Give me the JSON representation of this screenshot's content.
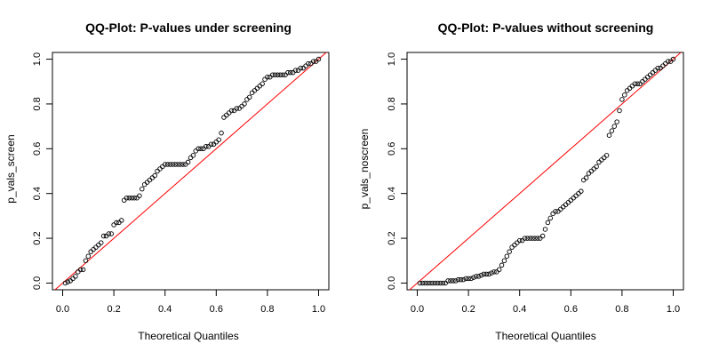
{
  "chart_data": [
    {
      "type": "scatter",
      "title": "QQ-Plot: P-values under screening",
      "xlabel": "Theoretical Quantiles",
      "ylabel": "p_vals_screen",
      "xlim": [
        -0.04,
        1.04
      ],
      "ylim": [
        -0.03,
        1.03
      ],
      "xticks": [
        "0.0",
        "0.2",
        "0.4",
        "0.6",
        "0.8",
        "1.0"
      ],
      "yticks": [
        "0.0",
        "0.2",
        "0.4",
        "0.6",
        "0.8",
        "1.0"
      ],
      "grid": false,
      "legend": "none",
      "reference_line": {
        "from": [
          -0.04,
          -0.04
        ],
        "to": [
          1.04,
          1.04
        ],
        "color": "#ff0000"
      },
      "point_color": "#000000",
      "x": [
        0.01,
        0.02,
        0.03,
        0.04,
        0.05,
        0.06,
        0.07,
        0.08,
        0.09,
        0.1,
        0.11,
        0.12,
        0.13,
        0.14,
        0.15,
        0.16,
        0.17,
        0.18,
        0.19,
        0.2,
        0.21,
        0.22,
        0.23,
        0.24,
        0.25,
        0.26,
        0.27,
        0.28,
        0.29,
        0.3,
        0.31,
        0.32,
        0.33,
        0.34,
        0.35,
        0.36,
        0.37,
        0.38,
        0.39,
        0.4,
        0.41,
        0.42,
        0.43,
        0.44,
        0.45,
        0.46,
        0.47,
        0.48,
        0.49,
        0.5,
        0.51,
        0.52,
        0.53,
        0.54,
        0.55,
        0.56,
        0.57,
        0.58,
        0.59,
        0.6,
        0.61,
        0.62,
        0.63,
        0.64,
        0.65,
        0.66,
        0.67,
        0.68,
        0.69,
        0.7,
        0.71,
        0.72,
        0.73,
        0.74,
        0.75,
        0.76,
        0.77,
        0.78,
        0.79,
        0.8,
        0.81,
        0.82,
        0.83,
        0.84,
        0.85,
        0.86,
        0.87,
        0.88,
        0.89,
        0.9,
        0.91,
        0.92,
        0.93,
        0.94,
        0.95,
        0.96,
        0.97,
        0.98,
        0.99,
        1.0
      ],
      "y": [
        0.0,
        0.005,
        0.01,
        0.02,
        0.03,
        0.05,
        0.06,
        0.06,
        0.1,
        0.12,
        0.14,
        0.15,
        0.16,
        0.17,
        0.18,
        0.21,
        0.21,
        0.22,
        0.22,
        0.26,
        0.27,
        0.27,
        0.28,
        0.37,
        0.38,
        0.38,
        0.38,
        0.38,
        0.38,
        0.39,
        0.42,
        0.44,
        0.45,
        0.46,
        0.47,
        0.48,
        0.5,
        0.51,
        0.52,
        0.53,
        0.53,
        0.53,
        0.53,
        0.53,
        0.53,
        0.53,
        0.53,
        0.53,
        0.54,
        0.56,
        0.57,
        0.59,
        0.6,
        0.6,
        0.6,
        0.61,
        0.61,
        0.62,
        0.62,
        0.63,
        0.64,
        0.67,
        0.74,
        0.75,
        0.76,
        0.77,
        0.77,
        0.78,
        0.78,
        0.79,
        0.8,
        0.82,
        0.83,
        0.85,
        0.86,
        0.87,
        0.88,
        0.89,
        0.91,
        0.92,
        0.92,
        0.93,
        0.93,
        0.93,
        0.93,
        0.93,
        0.93,
        0.94,
        0.94,
        0.94,
        0.95,
        0.95,
        0.96,
        0.96,
        0.97,
        0.98,
        0.98,
        0.99,
        0.99,
        1.0
      ]
    },
    {
      "type": "scatter",
      "title": "QQ-Plot: P-values without screening",
      "xlabel": "Theoretical Quantiles",
      "ylabel": "p_vals_noscreen",
      "xlim": [
        -0.04,
        1.04
      ],
      "ylim": [
        -0.03,
        1.03
      ],
      "xticks": [
        "0.0",
        "0.2",
        "0.4",
        "0.6",
        "0.8",
        "1.0"
      ],
      "yticks": [
        "0.0",
        "0.2",
        "0.4",
        "0.6",
        "0.8",
        "1.0"
      ],
      "grid": false,
      "legend": "none",
      "reference_line": {
        "from": [
          -0.04,
          -0.04
        ],
        "to": [
          1.04,
          1.04
        ],
        "color": "#ff0000"
      },
      "point_color": "#000000",
      "x": [
        0.01,
        0.02,
        0.03,
        0.04,
        0.05,
        0.06,
        0.07,
        0.08,
        0.09,
        0.1,
        0.11,
        0.12,
        0.13,
        0.14,
        0.15,
        0.16,
        0.17,
        0.18,
        0.19,
        0.2,
        0.21,
        0.22,
        0.23,
        0.24,
        0.25,
        0.26,
        0.27,
        0.28,
        0.29,
        0.3,
        0.31,
        0.32,
        0.33,
        0.34,
        0.35,
        0.36,
        0.37,
        0.38,
        0.39,
        0.4,
        0.41,
        0.42,
        0.43,
        0.44,
        0.45,
        0.46,
        0.47,
        0.48,
        0.49,
        0.5,
        0.51,
        0.52,
        0.53,
        0.54,
        0.55,
        0.56,
        0.57,
        0.58,
        0.59,
        0.6,
        0.61,
        0.62,
        0.63,
        0.64,
        0.65,
        0.66,
        0.67,
        0.68,
        0.69,
        0.7,
        0.71,
        0.72,
        0.73,
        0.74,
        0.75,
        0.76,
        0.77,
        0.78,
        0.79,
        0.8,
        0.81,
        0.82,
        0.83,
        0.84,
        0.85,
        0.86,
        0.87,
        0.88,
        0.89,
        0.9,
        0.91,
        0.92,
        0.93,
        0.94,
        0.95,
        0.96,
        0.97,
        0.98,
        0.99,
        1.0
      ],
      "y": [
        0.0,
        0.0,
        0.0,
        0.0,
        0.0,
        0.0,
        0.0,
        0.0,
        0.0,
        0.0,
        0.0,
        0.01,
        0.01,
        0.01,
        0.01,
        0.015,
        0.015,
        0.015,
        0.02,
        0.02,
        0.02,
        0.025,
        0.03,
        0.03,
        0.035,
        0.04,
        0.04,
        0.04,
        0.045,
        0.05,
        0.05,
        0.06,
        0.08,
        0.1,
        0.12,
        0.14,
        0.16,
        0.17,
        0.18,
        0.19,
        0.19,
        0.2,
        0.2,
        0.2,
        0.2,
        0.2,
        0.2,
        0.2,
        0.21,
        0.24,
        0.27,
        0.29,
        0.31,
        0.32,
        0.32,
        0.33,
        0.34,
        0.35,
        0.36,
        0.37,
        0.38,
        0.39,
        0.4,
        0.41,
        0.46,
        0.47,
        0.49,
        0.5,
        0.51,
        0.52,
        0.54,
        0.55,
        0.56,
        0.57,
        0.66,
        0.68,
        0.7,
        0.72,
        0.77,
        0.82,
        0.84,
        0.86,
        0.87,
        0.88,
        0.89,
        0.89,
        0.89,
        0.9,
        0.91,
        0.92,
        0.93,
        0.94,
        0.95,
        0.96,
        0.96,
        0.97,
        0.98,
        0.99,
        0.99,
        1.0
      ]
    }
  ]
}
